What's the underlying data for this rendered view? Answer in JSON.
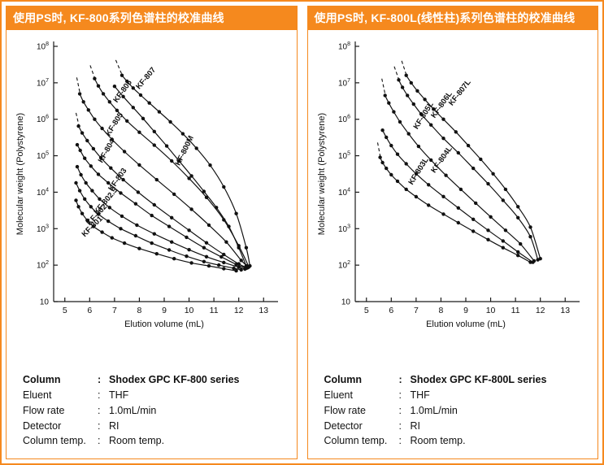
{
  "colon": ":",
  "accent_color": "#f5891e",
  "panels": [
    {
      "header": "使用PS时, KF-800系列色谱柱的校准曲线",
      "conditions": [
        {
          "label": "Column",
          "value": "Shodex GPC KF-800 series"
        },
        {
          "label": "Eluent",
          "value": "THF"
        },
        {
          "label": "Flow rate",
          "value": "1.0mL/min"
        },
        {
          "label": "Detector",
          "value": "RI"
        },
        {
          "label": "Column temp.",
          "value": "Room temp."
        }
      ]
    },
    {
      "header": "使用PS时, KF-800L(线性柱)系列色谱柱的校准曲线",
      "conditions": [
        {
          "label": "Column",
          "value": "Shodex GPC KF-800L series"
        },
        {
          "label": "Eluent",
          "value": "THF"
        },
        {
          "label": "Flow rate",
          "value": "1.0mL/min"
        },
        {
          "label": "Detector",
          "value": "RI"
        },
        {
          "label": "Column temp.",
          "value": "Room temp."
        }
      ]
    }
  ],
  "chart_data": [
    {
      "type": "line",
      "title": "",
      "xlabel": "Elution volume (mL)",
      "ylabel": "Molecular weight (Polystyrene)",
      "xscale": "linear",
      "yscale": "log",
      "xlim": [
        4.55,
        13.45
      ],
      "xticks": [
        5,
        6,
        7,
        8,
        9,
        10,
        11,
        12,
        13
      ],
      "ylim": [
        10,
        100000000
      ],
      "yticks_exp": [
        1,
        2,
        3,
        4,
        5,
        6,
        7,
        8
      ],
      "legend": "labels-on-curves",
      "grid": false,
      "series": [
        {
          "name": "KF-801",
          "x": [
            5.45,
            5.55,
            5.7,
            5.9,
            6.15,
            6.5,
            6.9,
            7.4,
            8.0,
            8.7,
            9.4,
            10.1,
            10.8,
            11.4,
            11.9
          ],
          "y": [
            6000,
            4000,
            2600,
            1700,
            1150,
            800,
            560,
            400,
            285,
            205,
            150,
            115,
            95,
            80,
            70
          ],
          "label": {
            "x": 5.8,
            "y": 580,
            "rot": -45
          }
        },
        {
          "name": "KF-802",
          "x": [
            5.45,
            5.6,
            5.8,
            6.05,
            6.35,
            6.75,
            7.25,
            7.85,
            8.5,
            9.2,
            9.9,
            10.6,
            11.2,
            11.8,
            12.1
          ],
          "y": [
            18000,
            11000,
            6500,
            4000,
            2500,
            1600,
            1000,
            640,
            400,
            260,
            175,
            125,
            100,
            82,
            74
          ],
          "label": {
            "x": 6.0,
            "y": 1200,
            "rot": -47
          }
        },
        {
          "name": "KF-802.5",
          "x": [
            5.5,
            5.65,
            5.85,
            6.1,
            6.4,
            6.8,
            7.3,
            7.9,
            8.6,
            9.3,
            10.0,
            10.7,
            11.4,
            12.0,
            12.25
          ],
          "y": [
            50000,
            30000,
            18000,
            11000,
            6500,
            3800,
            2200,
            1250,
            720,
            430,
            265,
            170,
            118,
            88,
            78
          ],
          "label": {
            "x": 6.3,
            "y": 2400,
            "rot": -50
          }
        },
        {
          "name": "KF-803",
          "x": [
            5.5,
            5.62,
            5.8,
            6.05,
            6.35,
            6.75,
            7.25,
            7.85,
            8.5,
            9.2,
            9.9,
            10.6,
            11.3,
            11.9,
            12.3
          ],
          "y": [
            200000,
            140000,
            85000,
            52000,
            31000,
            18000,
            9500,
            4800,
            2300,
            1150,
            580,
            300,
            168,
            105,
            82
          ],
          "label": {
            "x": 6.9,
            "y": 10500,
            "rot": -55
          }
        },
        {
          "name": "KF-804",
          "x": [
            5.55,
            5.7,
            5.9,
            6.15,
            6.45,
            6.85,
            7.35,
            7.95,
            8.6,
            9.3,
            10.0,
            10.7,
            11.4,
            12.0,
            12.35
          ],
          "y": [
            650000,
            420000,
            260000,
            155000,
            88000,
            46000,
            22000,
            10000,
            4500,
            2000,
            900,
            410,
            195,
            108,
            84
          ],
          "label": {
            "x": 6.5,
            "y": 62000,
            "rot": -60
          },
          "dash": [
            [
              5.45,
              1500000
            ],
            [
              5.57,
              660000
            ]
          ]
        },
        {
          "name": "KF-805",
          "x": [
            5.6,
            5.75,
            5.95,
            6.2,
            6.5,
            6.9,
            7.4,
            8.0,
            8.7,
            9.4,
            10.1,
            10.8,
            11.5,
            12.1,
            12.4
          ],
          "y": [
            5000000,
            3000000,
            1800000,
            1000000,
            560000,
            280000,
            130000,
            56000,
            22000,
            8800,
            3400,
            1250,
            430,
            135,
            88
          ],
          "label": {
            "x": 6.8,
            "y": 340000,
            "rot": -58
          },
          "dash": [
            [
              5.48,
              14000000
            ],
            [
              5.62,
              4800000
            ]
          ]
        },
        {
          "name": "KF-806",
          "x": [
            6.2,
            6.35,
            6.55,
            6.8,
            7.1,
            7.5,
            8.0,
            8.6,
            9.3,
            10.0,
            10.7,
            11.4,
            12.0,
            12.4
          ],
          "y": [
            13000000,
            8200000,
            5000000,
            3000000,
            1750000,
            900000,
            440000,
            195000,
            72000,
            24000,
            7200,
            1750,
            340,
            92
          ],
          "label": {
            "x": 7.1,
            "y": 2800000,
            "rot": -54
          },
          "dash": [
            [
              6.02,
              30000000
            ],
            [
              6.22,
              12500000
            ]
          ]
        },
        {
          "name": "KF-807",
          "x": [
            7.3,
            7.5,
            7.75,
            8.05,
            8.4,
            8.8,
            9.25,
            9.75,
            10.3,
            10.85,
            11.4,
            11.9,
            12.3,
            12.45
          ],
          "y": [
            16000000,
            11000000,
            7200000,
            4600000,
            2800000,
            1600000,
            850000,
            400000,
            160000,
            55000,
            14000,
            2600,
            300,
            95
          ],
          "label": {
            "x": 8.0,
            "y": 6500000,
            "rot": -50
          },
          "dash": [
            [
              7.05,
              42000000
            ],
            [
              7.32,
              15500000
            ]
          ]
        },
        {
          "name": "KF-800M",
          "x": [
            7.0,
            7.35,
            7.75,
            8.15,
            8.6,
            9.1,
            9.6,
            10.1,
            10.6,
            11.1,
            11.6,
            12.0,
            12.3
          ],
          "y": [
            8000000,
            4200000,
            2100000,
            1050000,
            460000,
            185000,
            72000,
            28000,
            10500,
            3800,
            1150,
            300,
            95
          ],
          "label": {
            "x": 9.62,
            "y": 52000,
            "rot": -64
          }
        }
      ]
    },
    {
      "type": "line",
      "title": "",
      "xlabel": "Elution volume (mL)",
      "ylabel": "Molecular weight (Polystyrene)",
      "xscale": "linear",
      "yscale": "log",
      "xlim": [
        4.55,
        13.45
      ],
      "xticks": [
        5,
        6,
        7,
        8,
        9,
        10,
        11,
        12,
        13
      ],
      "ylim": [
        10,
        100000000
      ],
      "yticks_exp": [
        1,
        2,
        3,
        4,
        5,
        6,
        7,
        8
      ],
      "legend": "labels-on-curves",
      "grid": false,
      "series": [
        {
          "name": "KF-803L",
          "x": [
            5.55,
            5.65,
            5.8,
            6.0,
            6.25,
            6.6,
            7.0,
            7.5,
            8.1,
            8.7,
            9.3,
            9.9,
            10.5,
            11.1,
            11.6
          ],
          "y": [
            90000,
            65000,
            45000,
            30000,
            20000,
            12000,
            7500,
            4400,
            2500,
            1450,
            850,
            500,
            300,
            185,
            120
          ],
          "label": {
            "x": 6.85,
            "y": 15500,
            "rot": -58
          },
          "dash": [
            [
              5.45,
              230000
            ],
            [
              5.57,
              85000
            ]
          ]
        },
        {
          "name": "KF-804L",
          "x": [
            5.65,
            5.8,
            6.0,
            6.25,
            6.6,
            7.0,
            7.5,
            8.1,
            8.7,
            9.3,
            9.9,
            10.5,
            11.1,
            11.7
          ],
          "y": [
            500000,
            320000,
            190000,
            110000,
            60000,
            32000,
            16000,
            7600,
            3700,
            1800,
            900,
            460,
            230,
            120
          ],
          "label": {
            "x": 7.75,
            "y": 33000,
            "rot": -55
          }
        },
        {
          "name": "KF-805L",
          "x": [
            5.75,
            5.9,
            6.1,
            6.35,
            6.7,
            7.1,
            7.6,
            8.2,
            8.8,
            9.4,
            10.0,
            10.6,
            11.2,
            11.75
          ],
          "y": [
            4500000,
            2800000,
            1600000,
            850000,
            400000,
            180000,
            76000,
            29000,
            12000,
            5000,
            2100,
            900,
            380,
            130
          ],
          "label": {
            "x": 7.05,
            "y": 520000,
            "rot": -58
          },
          "dash": [
            [
              5.62,
              13000000
            ],
            [
              5.77,
              4300000
            ]
          ]
        },
        {
          "name": "KF-806L",
          "x": [
            6.3,
            6.45,
            6.65,
            6.9,
            7.2,
            7.6,
            8.1,
            8.7,
            9.3,
            9.9,
            10.5,
            11.1,
            11.6,
            11.9
          ],
          "y": [
            12000000,
            7500000,
            4500000,
            2600000,
            1400000,
            700000,
            300000,
            120000,
            45000,
            17000,
            6000,
            2000,
            600,
            140
          ],
          "label": {
            "x": 7.75,
            "y": 1050000,
            "rot": -55
          },
          "dash": [
            [
              6.12,
              28000000
            ],
            [
              6.32,
              11500000
            ]
          ]
        },
        {
          "name": "KF-807L",
          "x": [
            6.6,
            6.8,
            7.05,
            7.35,
            7.7,
            8.1,
            8.6,
            9.1,
            9.6,
            10.1,
            10.6,
            11.1,
            11.6,
            12.0
          ],
          "y": [
            16000000,
            10000000,
            6000000,
            3500000,
            1900000,
            1000000,
            450000,
            190000,
            80000,
            32000,
            12000,
            4000,
            1100,
            150
          ],
          "label": {
            "x": 8.45,
            "y": 2300000,
            "rot": -52
          },
          "dash": [
            [
              6.42,
              40000000
            ],
            [
              6.62,
              15500000
            ]
          ]
        }
      ]
    }
  ]
}
